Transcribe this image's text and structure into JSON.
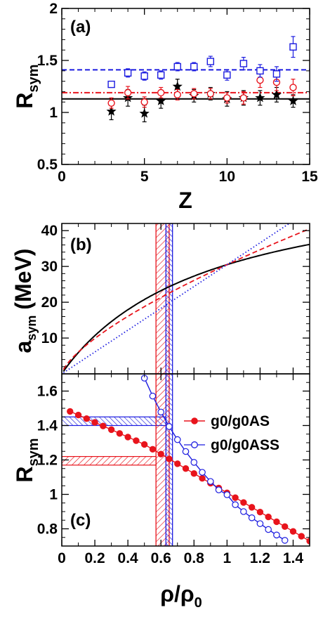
{
  "colors": {
    "black": "#000000",
    "red": "#e8141c",
    "blue": "#1c1ce0"
  },
  "chart_data": [
    {
      "type": "scatter",
      "panel_label": "(a)",
      "xlabel": "Z",
      "ylabel_main": "R",
      "ylabel_sub": "sym",
      "xlim": [
        0,
        15
      ],
      "ylim": [
        0.5,
        2
      ],
      "xticks": [
        {
          "v": 0,
          "t": "0"
        },
        {
          "v": 5,
          "t": "5"
        },
        {
          "v": 10,
          "t": "10"
        },
        {
          "v": 15,
          "t": "15"
        }
      ],
      "yticks": [
        {
          "v": 0.5,
          "t": "0.5"
        },
        {
          "v": 1,
          "t": "1"
        },
        {
          "v": 1.5,
          "t": "1.5"
        },
        {
          "v": 2,
          "t": "2"
        }
      ],
      "hlines": [
        {
          "y": 1.13,
          "style": "solid",
          "color": "black"
        },
        {
          "y": 1.19,
          "style": "dashdot",
          "color": "red"
        },
        {
          "y": 1.41,
          "style": "dashed",
          "color": "blue"
        }
      ],
      "series": [
        {
          "marker": "star",
          "color": "black",
          "x": [
            3,
            4,
            5,
            6,
            7,
            8,
            9,
            10,
            11,
            12,
            13,
            14
          ],
          "y": [
            1.01,
            1.14,
            0.99,
            1.11,
            1.25,
            1.16,
            1.18,
            1.13,
            1.14,
            1.14,
            1.17,
            1.11
          ],
          "err": [
            0.08,
            0.08,
            0.08,
            0.07,
            0.07,
            0.06,
            0.06,
            0.07,
            0.07,
            0.07,
            0.07,
            0.06
          ]
        },
        {
          "marker": "circle",
          "color": "red",
          "x": [
            3,
            4,
            5,
            6,
            7,
            8,
            9,
            10,
            11,
            12,
            13,
            14
          ],
          "y": [
            1.09,
            1.19,
            1.1,
            1.19,
            1.17,
            1.18,
            1.18,
            1.14,
            1.14,
            1.31,
            1.29,
            1.24
          ],
          "err": [
            0.05,
            0.06,
            0.05,
            0.05,
            0.05,
            0.05,
            0.05,
            0.05,
            0.06,
            0.07,
            0.08,
            0.08
          ]
        },
        {
          "marker": "square",
          "color": "blue",
          "x": [
            3,
            4,
            5,
            6,
            7,
            8,
            9,
            10,
            11,
            12,
            13,
            14
          ],
          "y": [
            1.27,
            1.38,
            1.35,
            1.36,
            1.44,
            1.44,
            1.49,
            1.36,
            1.47,
            1.4,
            1.37,
            1.63
          ],
          "err": [
            0.03,
            0.04,
            0.04,
            0.04,
            0.04,
            0.04,
            0.05,
            0.05,
            0.06,
            0.06,
            0.07,
            0.1
          ]
        }
      ]
    },
    {
      "type": "line",
      "panel_label": "(b)",
      "ylabel_main": "a",
      "ylabel_sub": "sym",
      "ylabel_rest": "(MeV)",
      "xlim": [
        0,
        1.5
      ],
      "ylim": [
        0,
        42
      ],
      "yticks": [
        {
          "v": 10,
          "t": "10"
        },
        {
          "v": 20,
          "t": "20"
        },
        {
          "v": 30,
          "t": "30"
        },
        {
          "v": 40,
          "t": "40"
        }
      ],
      "bands": [
        {
          "x0": 0.57,
          "x1": 0.65,
          "color": "red"
        },
        {
          "x0": 0.63,
          "x1": 0.67,
          "color": "blue"
        }
      ],
      "series": [
        {
          "style": "solid",
          "color": "black",
          "model": "soft",
          "s0": 30.5,
          "gamma": 0.5
        },
        {
          "style": "dashed",
          "color": "red",
          "model": "power",
          "s0": 30.5,
          "gamma": 0.7
        },
        {
          "style": "dotted",
          "color": "blue",
          "model": "power",
          "s0": 30.5,
          "gamma": 1.0
        }
      ]
    },
    {
      "type": "line",
      "panel_label": "(c)",
      "xlabel_main": "ρ/ρ",
      "xlabel_sub": "0",
      "ylabel_main": "R",
      "ylabel_sub": "sym",
      "xlim": [
        0,
        1.5
      ],
      "ylim": [
        0.7,
        1.7
      ],
      "xticks": [
        {
          "v": 0,
          "t": "0"
        },
        {
          "v": 0.2,
          "t": "0.2"
        },
        {
          "v": 0.4,
          "t": "0.4"
        },
        {
          "v": 0.6,
          "t": "0.6"
        },
        {
          "v": 0.8,
          "t": "0.8"
        },
        {
          "v": 1,
          "t": "1"
        },
        {
          "v": 1.2,
          "t": "1.2"
        },
        {
          "v": 1.4,
          "t": "1.4"
        }
      ],
      "yticks": [
        {
          "v": 0.8,
          "t": "0.8"
        },
        {
          "v": 1,
          "t": "1"
        },
        {
          "v": 1.2,
          "t": "1.2"
        },
        {
          "v": 1.4,
          "t": "1.4"
        },
        {
          "v": 1.6,
          "t": "1.6"
        }
      ],
      "vbands": [
        {
          "x0": 0.57,
          "x1": 0.65,
          "color": "red"
        },
        {
          "x0": 0.63,
          "x1": 0.67,
          "color": "blue"
        }
      ],
      "hbands": [
        {
          "y0": 1.17,
          "y1": 1.22,
          "x1": 0.57,
          "color": "red"
        },
        {
          "y0": 1.4,
          "y1": 1.45,
          "x1": 0.63,
          "color": "blue"
        }
      ],
      "series": [
        {
          "name": "g0/g0AS",
          "marker": "filled-circle",
          "color": "red",
          "x": [
            0.05,
            0.1,
            0.15,
            0.2,
            0.25,
            0.3,
            0.35,
            0.4,
            0.45,
            0.5,
            0.55,
            0.6,
            0.65,
            0.7,
            0.75,
            0.8,
            0.85,
            0.9,
            0.95,
            1.0,
            1.05,
            1.1,
            1.15,
            1.2,
            1.25,
            1.3,
            1.35,
            1.4,
            1.45,
            1.5
          ],
          "y": [
            1.482,
            1.461,
            1.44,
            1.418,
            1.397,
            1.376,
            1.354,
            1.333,
            1.312,
            1.29,
            1.262,
            1.234,
            1.206,
            1.178,
            1.15,
            1.121,
            1.093,
            1.065,
            1.037,
            1.009,
            0.981,
            0.953,
            0.925,
            0.897,
            0.869,
            0.841,
            0.813,
            0.785,
            0.757,
            0.729
          ]
        },
        {
          "name": "g0/g0ASS",
          "marker": "open-circle",
          "color": "blue",
          "x": [
            0.5,
            0.55,
            0.6,
            0.65,
            0.7,
            0.75,
            0.8,
            0.85,
            0.9,
            0.95,
            1.0,
            1.05,
            1.1,
            1.15,
            1.2,
            1.25,
            1.3,
            1.35
          ],
          "y": [
            1.675,
            1.571,
            1.478,
            1.394,
            1.318,
            1.249,
            1.186,
            1.128,
            1.075,
            1.026,
            0.998,
            0.94,
            0.9,
            0.864,
            0.83,
            0.796,
            0.764,
            0.733
          ]
        }
      ]
    }
  ]
}
